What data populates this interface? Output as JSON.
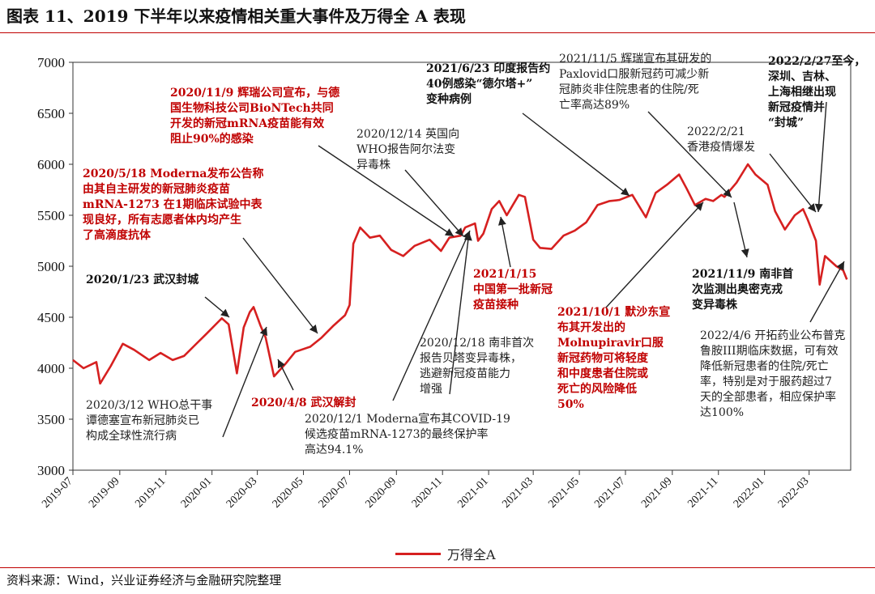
{
  "title": "图表 11、2019 下半年以来疫情相关重大事件及万得全 A 表现",
  "source": "资料来源：Wind，兴业证券经济与金融研究院整理",
  "legend": {
    "label": "万得全A",
    "color": "#d62020"
  },
  "annotations": [
    {
      "id": "a1",
      "style": "red",
      "lines": [
        "2020/11/9 辉瑞公司宣布，与德",
        "国生物科技公司BioNTech共同",
        "开发的新冠mRNA疫苗能有效",
        "阻止90%的感染"
      ]
    },
    {
      "id": "a2",
      "style": "red",
      "lines": [
        "2020/5/18 Moderna发布公告称",
        "由其自主研发的新冠肺炎疫苗",
        "mRNA-1273 在1期临床试验中表",
        "现良好，所有志愿者体内均产生",
        "了高滴度抗体"
      ]
    },
    {
      "id": "a3",
      "style": "bold",
      "lines": [
        "2020/1/23 武汉封城"
      ]
    },
    {
      "id": "a4",
      "style": "normal",
      "lines": [
        "2020/3/12 WHO总干事",
        "谭德塞宣布新冠肺炎已",
        "构成全球性流行病"
      ]
    },
    {
      "id": "a5",
      "style": "red",
      "lines": [
        "2020/4/8 武汉解封"
      ]
    },
    {
      "id": "a6",
      "style": "normal",
      "lines": [
        "2020/12/14 英国向",
        "WHO报告阿尔法变",
        "异毒株"
      ]
    },
    {
      "id": "a7",
      "style": "bold",
      "lines": [
        "2021/6/23 印度报告约",
        "40例感染“德尔塔+”",
        "变种病例"
      ]
    },
    {
      "id": "a8",
      "style": "normal",
      "lines": [
        "2021/11/5 辉瑞宣布其研发的",
        "Paxlovid口服新冠药可减少新",
        "冠肺炎非住院患者的住院/死",
        "亡率高达89%"
      ]
    },
    {
      "id": "a9",
      "style": "bold",
      "lines": [
        "2022/2/27至今，",
        "深圳、吉林、",
        "上海相继出现",
        "新冠疫情并",
        "“封城”"
      ]
    },
    {
      "id": "a10",
      "style": "normal",
      "lines": [
        "2022/2/21",
        "香港疫情爆发"
      ]
    },
    {
      "id": "a11",
      "style": "red",
      "lines": [
        "2021/1/15",
        "中国第一批新冠",
        "疫苗接种"
      ]
    },
    {
      "id": "a12",
      "style": "normal",
      "lines": [
        "2020/12/18 南非首次",
        "报告贝塔变异毒株，",
        "逃避新冠疫苗能力",
        "增强"
      ]
    },
    {
      "id": "a13",
      "style": "normal",
      "lines": [
        "2020/12/1 Moderna宣布其COVID-19",
        "候选疫苗mRNA-1273的最终保护率",
        "高达94.1%"
      ]
    },
    {
      "id": "a14",
      "style": "red",
      "lines": [
        "2021/10/1 默沙东宣",
        "布其开发出的",
        "Molnupiravir口服",
        "新冠药物可将轻度",
        "和中度患者住院或",
        "死亡的风险降低",
        "50%"
      ]
    },
    {
      "id": "a15",
      "style": "bold",
      "lines": [
        "2021/11/9 南非首",
        "次监测出奥密克戎",
        "变异毒株"
      ]
    },
    {
      "id": "a16",
      "style": "normal",
      "lines": [
        "2022/4/6 开拓药业公布普克",
        "鲁胺III期临床数据，可有效",
        "降低新冠患者的住院/死亡",
        "率，特别是对于服药超过7",
        "天的全部患者，相应保护率",
        "达100%"
      ]
    }
  ],
  "chart_data": {
    "type": "line",
    "ylim": [
      3000,
      7000
    ],
    "yticks": [
      3000,
      3500,
      4000,
      4500,
      5000,
      5500,
      6000,
      6500,
      7000
    ],
    "xticks": [
      "2019-07",
      "2019-09",
      "2019-11",
      "2020-01",
      "2020-03",
      "2020-05",
      "2020-07",
      "2020-09",
      "2020-11",
      "2021-01",
      "2021-03",
      "2021-05",
      "2021-07",
      "2021-09",
      "2021-11",
      "2022-01",
      "2022-03"
    ],
    "grid": false,
    "legend_position": "bottom",
    "series": [
      {
        "name": "万得全A",
        "x": [
          "2019-07-01",
          "2019-07-15",
          "2019-08-01",
          "2019-08-06",
          "2019-08-20",
          "2019-09-05",
          "2019-09-20",
          "2019-10-10",
          "2019-10-25",
          "2019-11-10",
          "2019-11-25",
          "2019-12-10",
          "2019-12-25",
          "2020-01-10",
          "2020-01-14",
          "2020-01-23",
          "2020-02-03",
          "2020-02-12",
          "2020-02-20",
          "2020-02-25",
          "2020-03-05",
          "2020-03-12",
          "2020-03-23",
          "2020-04-08",
          "2020-04-20",
          "2020-05-10",
          "2020-05-25",
          "2020-06-10",
          "2020-06-25",
          "2020-07-01",
          "2020-07-06",
          "2020-07-15",
          "2020-07-28",
          "2020-08-10",
          "2020-08-25",
          "2020-09-10",
          "2020-09-25",
          "2020-10-15",
          "2020-10-30",
          "2020-11-10",
          "2020-11-25",
          "2020-12-01",
          "2020-12-14",
          "2020-12-18",
          "2020-12-25",
          "2021-01-05",
          "2021-01-15",
          "2021-01-25",
          "2021-02-10",
          "2021-02-18",
          "2021-03-01",
          "2021-03-10",
          "2021-03-25",
          "2021-04-10",
          "2021-04-25",
          "2021-05-10",
          "2021-05-25",
          "2021-06-10",
          "2021-06-23",
          "2021-07-10",
          "2021-07-28",
          "2021-08-10",
          "2021-08-25",
          "2021-09-10",
          "2021-09-20",
          "2021-10-01",
          "2021-10-15",
          "2021-10-25",
          "2021-11-05",
          "2021-11-09",
          "2021-11-25",
          "2021-12-10",
          "2021-12-20",
          "2022-01-05",
          "2022-01-15",
          "2022-01-28",
          "2022-02-10",
          "2022-02-21",
          "2022-02-27",
          "2022-03-10",
          "2022-03-15",
          "2022-03-22",
          "2022-04-06",
          "2022-04-15",
          "2022-04-20"
        ],
        "y": [
          4080,
          4000,
          4060,
          3850,
          4020,
          4240,
          4180,
          4080,
          4150,
          4080,
          4120,
          4230,
          4340,
          4460,
          4490,
          4430,
          3950,
          4400,
          4550,
          4600,
          4420,
          4300,
          3920,
          4050,
          4160,
          4210,
          4300,
          4420,
          4520,
          4620,
          5220,
          5380,
          5280,
          5300,
          5160,
          5100,
          5200,
          5260,
          5150,
          5280,
          5300,
          5380,
          5420,
          5250,
          5320,
          5560,
          5640,
          5500,
          5700,
          5680,
          5260,
          5180,
          5170,
          5300,
          5350,
          5430,
          5600,
          5640,
          5650,
          5700,
          5480,
          5720,
          5800,
          5900,
          5760,
          5600,
          5660,
          5640,
          5700,
          5680,
          5820,
          6000,
          5900,
          5800,
          5540,
          5360,
          5500,
          5560,
          5460,
          5250,
          4820,
          5100,
          5000,
          4960,
          4870
        ]
      }
    ]
  }
}
